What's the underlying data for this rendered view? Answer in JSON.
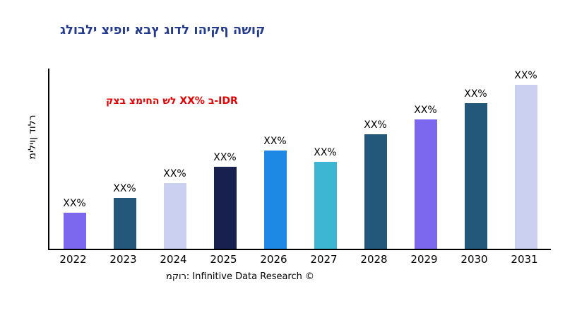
{
  "chart_data": {
    "type": "bar",
    "title": "גלובלי ציפוי אבץ גודל והיקף השוק",
    "title_color": "#253B8D",
    "ylabel": "מיליון דולר",
    "xlabel": "",
    "categories": [
      "2022",
      "2023",
      "2024",
      "2025",
      "2026",
      "2027",
      "2028",
      "2029",
      "2030",
      "2031"
    ],
    "values": [
      22,
      31,
      40,
      50,
      60,
      53,
      70,
      79,
      89,
      100
    ],
    "bar_labels": [
      "XX%",
      "XX%",
      "XX%",
      "XX%",
      "XX%",
      "XX%",
      "XX%",
      "XX%",
      "XX%",
      "XX%"
    ],
    "bar_colors": [
      "#7B68EE",
      "#24587A",
      "#CBD0F0",
      "#17204E",
      "#1E88E5",
      "#3CB6D3",
      "#24587A",
      "#7B68EE",
      "#24587A",
      "#CBD0F0"
    ],
    "annotation": "קצב צמיחה של XX% ב-IDR",
    "annotation_color": "#E60000",
    "source": "מקור: Infinitive Data Research ©",
    "ylim": [
      0,
      100
    ],
    "grid": false,
    "legend": false,
    "axis_color": "#000000",
    "background_color": "#FFFFFF"
  }
}
